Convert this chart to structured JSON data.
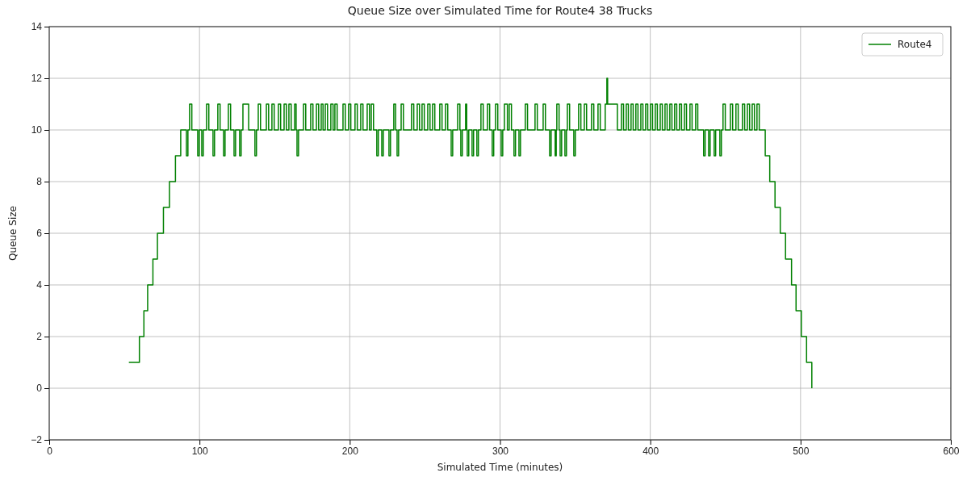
{
  "chart_data": {
    "type": "step",
    "title": "Queue Size over Simulated Time for Route4 38 Trucks",
    "xlabel": "Simulated Time (minutes)",
    "ylabel": "Queue Size",
    "xlim": [
      0,
      600
    ],
    "xticks": [
      0,
      100,
      200,
      300,
      400,
      500,
      600
    ],
    "ylim": [
      -2,
      14
    ],
    "yticks": [
      {
        "value": -2,
        "label": "−2"
      },
      0,
      2,
      4,
      6,
      8,
      10,
      12,
      14
    ],
    "grid": true,
    "legend": "top right",
    "line_style": "solid",
    "x": [
      53,
      60,
      63,
      65.5,
      69,
      72,
      76,
      80,
      84,
      87.5,
      91.3,
      92.3,
      93.4,
      94.9,
      98.8,
      99.8,
      101.5,
      102.5,
      104.7,
      106.2,
      109,
      110,
      112.2,
      113.7,
      116,
      117,
      119.2,
      120.7,
      123,
      124,
      126.7,
      127.7,
      128.9,
      132.7,
      136.9,
      137.9,
      139.1,
      140.6,
      144.5,
      146,
      148.2,
      149.7,
      152.5,
      154,
      156.3,
      157.8,
      159.5,
      161,
      163.3,
      164.3,
      164.9,
      165.9,
      169.2,
      170.7,
      174,
      175.5,
      177.8,
      179.3,
      181,
      182.2,
      183.7,
      185.2,
      187.4,
      188.9,
      190.1,
      191.6,
      195.5,
      197,
      199.2,
      200.7,
      203.5,
      205,
      207.3,
      208.8,
      211.6,
      213.1,
      214.3,
      215.8,
      218,
      219,
      221.3,
      222.3,
      226.1,
      227.1,
      229.3,
      230.5,
      231.5,
      232.5,
      234.2,
      235.7,
      241.1,
      242.6,
      244.9,
      246.4,
      248.1,
      249.6,
      251.9,
      253.4,
      255.1,
      256.6,
      259.9,
      261.4,
      263.7,
      265.2,
      267.5,
      268.5,
      271.8,
      273.3,
      273.9,
      274.9,
      277.1,
      277.8,
      278.2,
      279.2,
      281.4,
      282.4,
      284.6,
      285.6,
      287.3,
      288.8,
      291.6,
      293.1,
      294.8,
      295.8,
      297,
      298.5,
      300.8,
      301.8,
      302.9,
      304.9,
      306.1,
      307.6,
      309.3,
      310.3,
      312.6,
      313.6,
      316.8,
      318.3,
      323.3,
      324.8,
      328.7,
      330.2,
      333,
      334,
      336.7,
      337.4,
      337.8,
      339.3,
      340,
      341,
      343.2,
      344.2,
      344.8,
      346.3,
      349.1,
      350.1,
      352.3,
      353.8,
      356.1,
      357.6,
      360.9,
      362.4,
      365.2,
      366.7,
      370,
      371.1,
      371.6,
      378.1,
      380.8,
      382.2,
      384,
      385.4,
      387.2,
      388.6,
      390.4,
      391.8,
      393.7,
      395.1,
      396.9,
      398.3,
      400.1,
      401.5,
      403.3,
      404.7,
      406.6,
      408,
      409.8,
      411.2,
      413,
      414.4,
      416.2,
      417.6,
      419.4,
      420.8,
      422.7,
      424.1,
      426.4,
      427.8,
      430.2,
      431.6,
      435.5,
      436.5,
      438.8,
      439.8,
      442.5,
      443.5,
      446.3,
      447.3,
      448.4,
      449.9,
      453.3,
      454.8,
      457,
      458.5,
      461.3,
      462.8,
      464.6,
      466.1,
      467.8,
      469.3,
      471,
      472.5,
      476.5,
      479.5,
      483,
      486.5,
      490,
      494,
      497,
      500.5,
      504,
      507.5
    ],
    "series": [
      {
        "name": "Route4",
        "color": "#008000",
        "values": [
          1,
          2,
          3,
          4,
          5,
          6,
          7,
          8,
          9,
          10,
          9,
          10,
          11,
          10,
          9,
          10,
          9,
          10,
          11,
          10,
          9,
          10,
          11,
          10,
          9,
          10,
          11,
          10,
          9,
          10,
          9,
          10,
          11,
          10,
          9,
          10,
          11,
          10,
          11,
          10,
          11,
          10,
          11,
          10,
          11,
          10,
          11,
          10,
          11,
          10,
          9,
          10,
          11,
          10,
          11,
          10,
          11,
          10,
          11,
          10,
          11,
          10,
          11,
          10,
          11,
          10,
          11,
          10,
          11,
          10,
          11,
          10,
          11,
          10,
          11,
          10,
          11,
          10,
          9,
          10,
          9,
          10,
          9,
          10,
          11,
          10,
          9,
          10,
          11,
          10,
          11,
          10,
          11,
          10,
          11,
          10,
          11,
          10,
          11,
          10,
          11,
          10,
          11,
          10,
          9,
          10,
          11,
          10,
          9,
          10,
          11,
          10,
          9,
          10,
          9,
          10,
          9,
          10,
          11,
          10,
          11,
          10,
          9,
          10,
          11,
          10,
          9,
          10,
          11,
          10,
          11,
          10,
          9,
          10,
          9,
          10,
          11,
          10,
          11,
          10,
          11,
          10,
          9,
          10,
          9,
          10,
          11,
          10,
          9,
          10,
          9,
          10,
          11,
          10,
          9,
          10,
          11,
          10,
          11,
          10,
          11,
          10,
          11,
          10,
          11,
          12,
          11,
          10,
          11,
          10,
          11,
          10,
          11,
          10,
          11,
          10,
          11,
          10,
          11,
          10,
          11,
          10,
          11,
          10,
          11,
          10,
          11,
          10,
          11,
          10,
          11,
          10,
          11,
          10,
          11,
          10,
          11,
          10,
          11,
          10,
          9,
          10,
          9,
          10,
          9,
          10,
          9,
          10,
          11,
          10,
          11,
          10,
          11,
          10,
          11,
          10,
          11,
          10,
          11,
          10,
          11,
          10,
          9,
          8,
          7,
          6,
          5,
          4,
          3,
          2,
          1,
          0
        ]
      }
    ]
  }
}
